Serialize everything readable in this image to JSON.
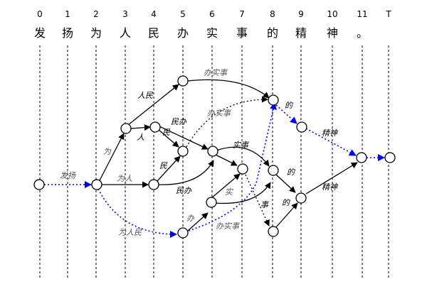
{
  "positions": [
    "0",
    "1",
    "2",
    "3",
    "4",
    "5",
    "6",
    "7",
    "8",
    "9",
    "10",
    "11",
    "T"
  ],
  "characters": [
    "发",
    "扬",
    "为",
    "人",
    "民",
    "办",
    "实",
    "事",
    "的",
    "精",
    "神",
    "。"
  ],
  "edge_labels": {
    "fayang": "发扬",
    "wei": "为",
    "weiren": "为人",
    "weirenmin": "为人民",
    "renmin": "人民",
    "ren": "人",
    "min_a": "民",
    "min_b": "民",
    "minban_a": "民办",
    "minban_b": "民办",
    "banshishi_a": "办实事",
    "banshishi_b": "办实事",
    "banshishi_c": "办实事",
    "ban": "办",
    "shi": "实",
    "shishi": "实事",
    "shi_single": "事",
    "de_a": "的",
    "de_b": "的",
    "de_c": "的",
    "jingshen_a": "精神",
    "jingshen_b": "精神"
  },
  "colors": {
    "best_path": "#0000ff",
    "edge": "#000000",
    "background": "#ffffff"
  }
}
